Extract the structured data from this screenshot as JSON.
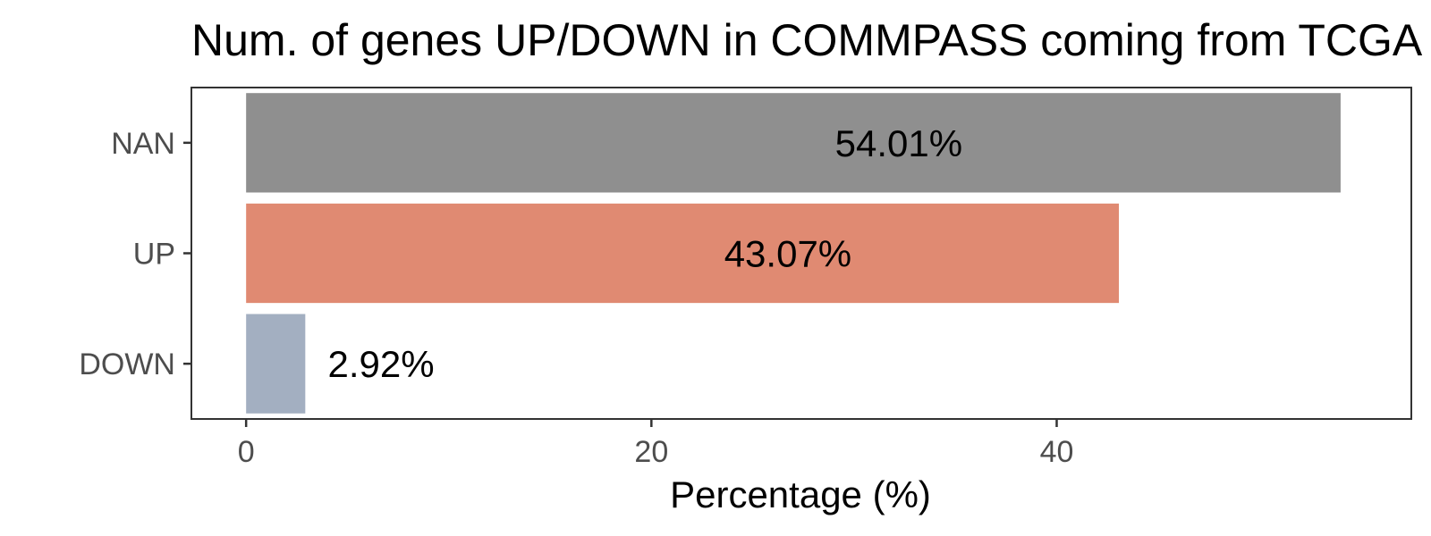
{
  "chart_data": {
    "type": "bar",
    "orientation": "horizontal",
    "title": "Num. of genes UP/DOWN in COMMPASS coming from TCGA",
    "xlabel": "Percentage (%)",
    "ylabel": "",
    "categories": [
      "NAN",
      "UP",
      "DOWN"
    ],
    "values": [
      54.01,
      43.07,
      2.92
    ],
    "data_labels": [
      "54.01%",
      "43.07%",
      "2.92%"
    ],
    "colors": [
      "#8f8f8f",
      "#e08a72",
      "#a3afc1"
    ],
    "xlim": [
      -2.7,
      57.5
    ],
    "xticks": [
      0,
      20,
      40
    ],
    "xtick_labels": [
      "0",
      "20",
      "40"
    ],
    "grid": false,
    "legend": "none"
  }
}
